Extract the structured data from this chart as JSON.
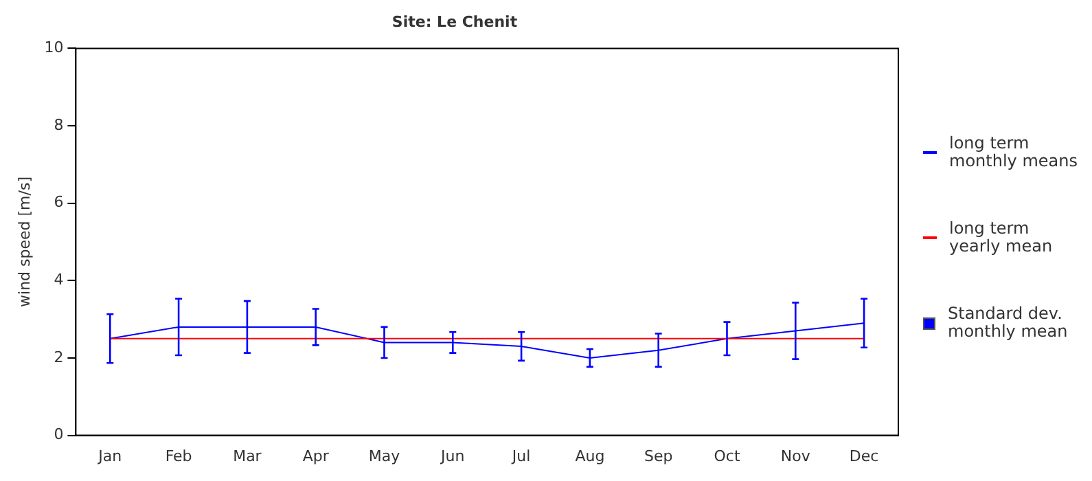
{
  "chart_data": {
    "type": "line",
    "title": "Site: Le Chenit",
    "ylabel": "wind speed [m/s]",
    "categories": [
      "Jan",
      "Feb",
      "Mar",
      "Apr",
      "May",
      "Jun",
      "Jul",
      "Aug",
      "Sep",
      "Oct",
      "Nov",
      "Dec"
    ],
    "series": [
      {
        "name": "long term monthly means",
        "color": "#0000ff",
        "values": [
          2.5,
          2.8,
          2.8,
          2.8,
          2.4,
          2.4,
          2.3,
          2.0,
          2.2,
          2.5,
          2.7,
          2.9
        ],
        "errors": [
          [
            1.87,
            3.13
          ],
          [
            2.07,
            3.53
          ],
          [
            2.13,
            3.47
          ],
          [
            2.33,
            3.27
          ],
          [
            2.0,
            2.8
          ],
          [
            2.13,
            2.67
          ],
          [
            1.93,
            2.67
          ],
          [
            1.77,
            2.23
          ],
          [
            1.77,
            2.63
          ],
          [
            2.07,
            2.93
          ],
          [
            1.97,
            3.43
          ],
          [
            2.27,
            3.53
          ]
        ]
      }
    ],
    "ref_lines": [
      {
        "axis": "y",
        "value": 2.5,
        "label": "long term yearly mean",
        "color": "#ff0000"
      }
    ],
    "annotations": [
      "Standard dev. monthly mean"
    ],
    "ylim": [
      0,
      10
    ],
    "yticks": [
      0,
      2,
      4,
      6,
      8,
      10
    ],
    "grid": false,
    "legend": "right",
    "marker": "none",
    "line_style": "solid"
  }
}
